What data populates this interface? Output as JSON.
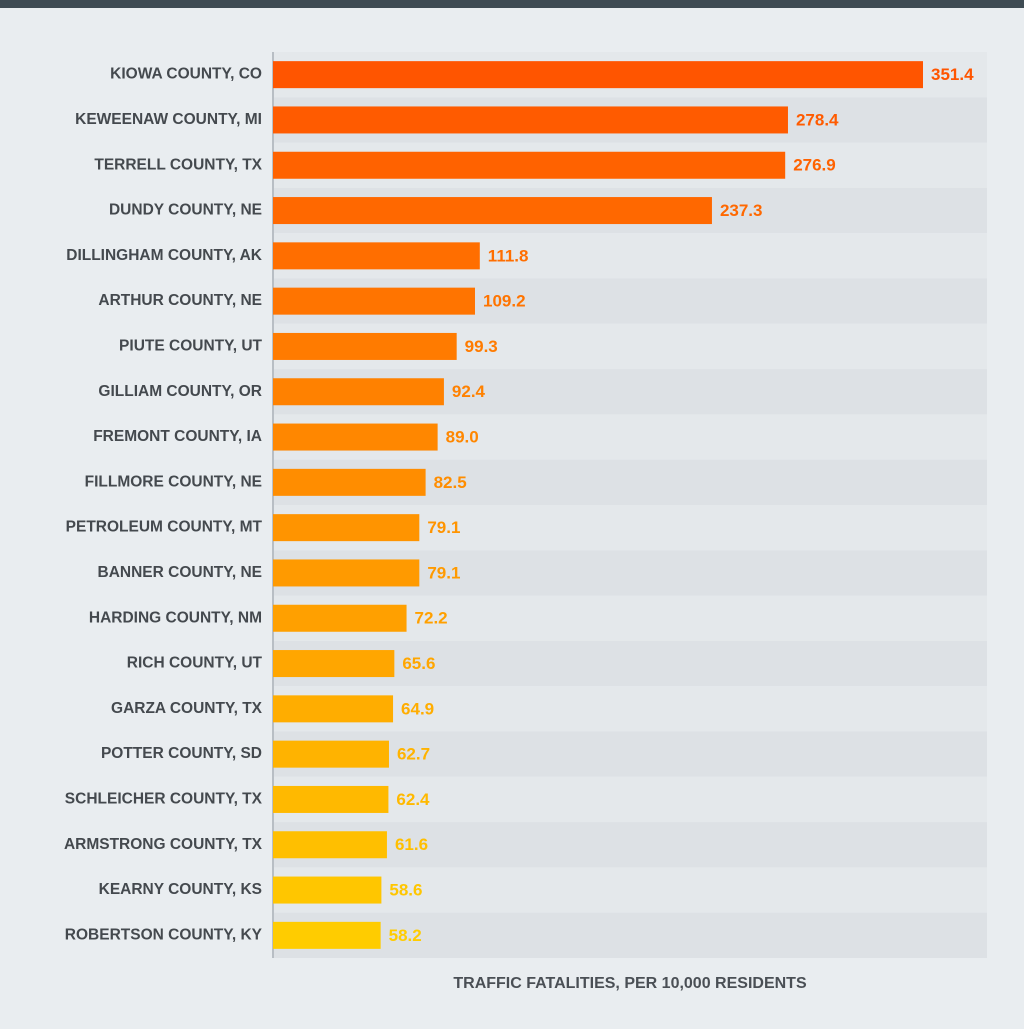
{
  "chart_data": {
    "type": "hbar",
    "categories": [
      "KIOWA COUNTY, CO",
      "KEWEENAW COUNTY, MI",
      "TERRELL COUNTY, TX",
      "DUNDY COUNTY, NE",
      "DILLINGHAM COUNTY, AK",
      "ARTHUR COUNTY, NE",
      "PIUTE COUNTY, UT",
      "GILLIAM COUNTY, OR",
      "FREMONT COUNTY, IA",
      "FILLMORE COUNTY, NE",
      "PETROLEUM COUNTY, MT",
      "BANNER COUNTY, NE",
      "HARDING COUNTY, NM",
      "RICH COUNTY, UT",
      "GARZA COUNTY, TX",
      "POTTER COUNTY, SD",
      "SCHLEICHER COUNTY, TX",
      "ARMSTRONG COUNTY, TX",
      "KEARNY COUNTY, KS",
      "ROBERTSON COUNTY, KY"
    ],
    "values": [
      351.4,
      278.4,
      276.9,
      237.3,
      111.8,
      109.2,
      99.3,
      92.4,
      89.0,
      82.5,
      79.1,
      79.1,
      72.2,
      65.6,
      64.9,
      62.7,
      62.4,
      61.6,
      58.6,
      58.2
    ],
    "value_labels": [
      "351.4",
      "278.4",
      "276.9",
      "237.3",
      "111.8",
      "109.2",
      "99.3",
      "92.4",
      "89.0",
      "82.5",
      "79.1",
      "79.1",
      "72.2",
      "65.6",
      "64.9",
      "62.7",
      "62.4",
      "61.6",
      "58.6",
      "58.2"
    ],
    "colors": [
      "#ff5500",
      "#ff5b00",
      "#ff6200",
      "#ff6800",
      "#ff6e00",
      "#ff7400",
      "#ff7b00",
      "#ff8100",
      "#ff8700",
      "#ff8d00",
      "#ff9400",
      "#ff9a00",
      "#ffa000",
      "#ffa600",
      "#ffad00",
      "#ffb300",
      "#ffb900",
      "#ffbf00",
      "#ffc600",
      "#ffcc00"
    ],
    "xlim": [
      0,
      386
    ],
    "xlabel": "TRAFFIC FATALITIES, PER 10,000 RESIDENTS"
  }
}
